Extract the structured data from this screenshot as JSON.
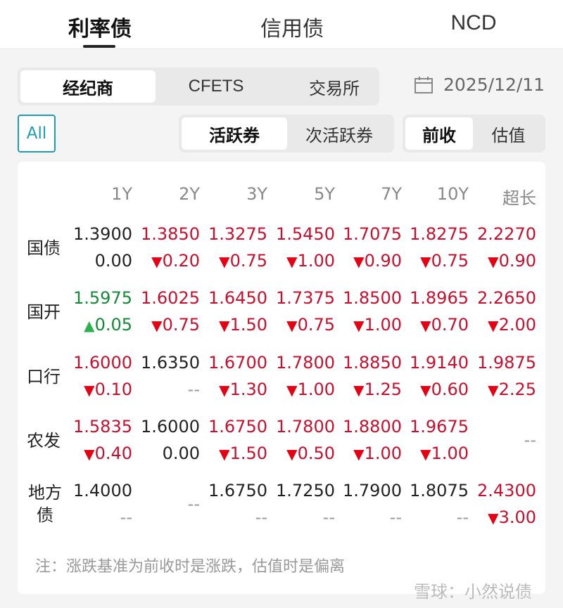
{
  "tabs": [
    "利率债",
    "信用债",
    "NCD"
  ],
  "source_tabs": [
    "经纪商",
    "CFETS",
    "交易所"
  ],
  "date": "2025/12/11",
  "all_label": "All",
  "bond_type": [
    "活跃券",
    "次活跃券"
  ],
  "mode": [
    "前收",
    "估值"
  ],
  "columns": [
    "1Y",
    "2Y",
    "3Y",
    "5Y",
    "7Y",
    "10Y",
    "超长"
  ],
  "colors": {
    "red": "#c8102e",
    "green": "#138a36",
    "accent": "#1e9bb8"
  },
  "rows": [
    {
      "label": "国债",
      "cells": [
        {
          "v": "1.3900",
          "vc": "neutral",
          "c": "0.00",
          "dir": "none"
        },
        {
          "v": "1.3850",
          "vc": "red",
          "c": "0.20",
          "dir": "down"
        },
        {
          "v": "1.3275",
          "vc": "red",
          "c": "0.75",
          "dir": "down"
        },
        {
          "v": "1.5450",
          "vc": "red",
          "c": "1.00",
          "dir": "down"
        },
        {
          "v": "1.7075",
          "vc": "red",
          "c": "0.90",
          "dir": "down"
        },
        {
          "v": "1.8275",
          "vc": "red",
          "c": "0.75",
          "dir": "down"
        },
        {
          "v": "2.2270",
          "vc": "red",
          "c": "0.90",
          "dir": "down"
        }
      ]
    },
    {
      "label": "国开",
      "cells": [
        {
          "v": "1.5975",
          "vc": "green",
          "c": "0.05",
          "dir": "up"
        },
        {
          "v": "1.6025",
          "vc": "red",
          "c": "0.75",
          "dir": "down"
        },
        {
          "v": "1.6450",
          "vc": "red",
          "c": "1.50",
          "dir": "down"
        },
        {
          "v": "1.7375",
          "vc": "red",
          "c": "0.75",
          "dir": "down"
        },
        {
          "v": "1.8500",
          "vc": "red",
          "c": "1.00",
          "dir": "down"
        },
        {
          "v": "1.8965",
          "vc": "red",
          "c": "0.70",
          "dir": "down"
        },
        {
          "v": "2.2650",
          "vc": "red",
          "c": "2.00",
          "dir": "down"
        }
      ]
    },
    {
      "label": "口行",
      "cells": [
        {
          "v": "1.6000",
          "vc": "red",
          "c": "0.10",
          "dir": "down"
        },
        {
          "v": "1.6350",
          "vc": "neutral",
          "c": "--",
          "dir": "none"
        },
        {
          "v": "1.6700",
          "vc": "red",
          "c": "1.30",
          "dir": "down"
        },
        {
          "v": "1.7800",
          "vc": "red",
          "c": "1.00",
          "dir": "down"
        },
        {
          "v": "1.8850",
          "vc": "red",
          "c": "1.25",
          "dir": "down"
        },
        {
          "v": "1.9140",
          "vc": "red",
          "c": "0.60",
          "dir": "down"
        },
        {
          "v": "1.9875",
          "vc": "red",
          "c": "2.25",
          "dir": "down"
        }
      ]
    },
    {
      "label": "农发",
      "cells": [
        {
          "v": "1.5835",
          "vc": "red",
          "c": "0.40",
          "dir": "down"
        },
        {
          "v": "1.6000",
          "vc": "neutral",
          "c": "0.00",
          "dir": "none"
        },
        {
          "v": "1.6750",
          "vc": "red",
          "c": "1.50",
          "dir": "down"
        },
        {
          "v": "1.7800",
          "vc": "red",
          "c": "0.50",
          "dir": "down"
        },
        {
          "v": "1.8800",
          "vc": "red",
          "c": "1.00",
          "dir": "down"
        },
        {
          "v": "1.9675",
          "vc": "red",
          "c": "1.00",
          "dir": "down"
        },
        {
          "empty": "--"
        }
      ]
    },
    {
      "label": "地方债",
      "cells": [
        {
          "v": "1.4000",
          "vc": "neutral",
          "c": "--",
          "dir": "none"
        },
        {
          "empty": "--"
        },
        {
          "v": "1.6750",
          "vc": "neutral",
          "c": "--",
          "dir": "none"
        },
        {
          "v": "1.7250",
          "vc": "neutral",
          "c": "--",
          "dir": "none"
        },
        {
          "v": "1.7900",
          "vc": "neutral",
          "c": "--",
          "dir": "none"
        },
        {
          "v": "1.8075",
          "vc": "neutral",
          "c": "--",
          "dir": "none"
        },
        {
          "v": "2.4300",
          "vc": "red",
          "c": "3.00",
          "dir": "down"
        }
      ]
    }
  ],
  "note": "注：涨跌基准为前收时是涨跌，估值时是偏离",
  "watermark": "雪球：小然说债"
}
